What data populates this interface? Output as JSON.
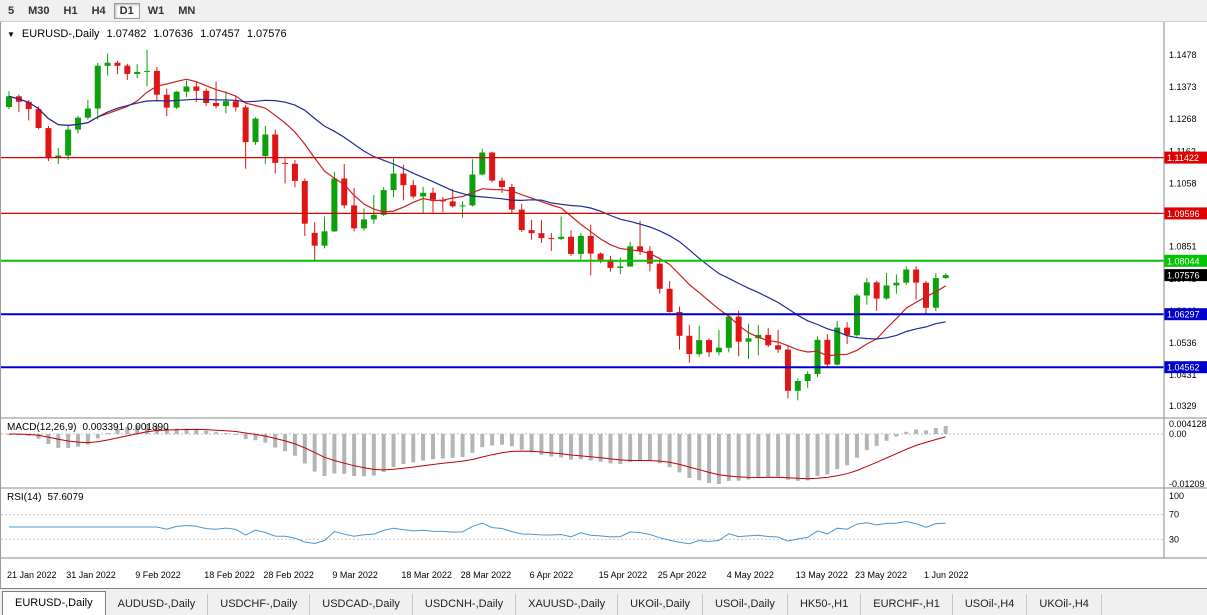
{
  "toolbar": {
    "timeframes": [
      "5",
      "M30",
      "H1",
      "H4",
      "D1",
      "W1",
      "MN"
    ],
    "active": "D1"
  },
  "chart": {
    "expand_icon": "▼",
    "symbol_label": "EURUSD-,Daily",
    "ohlc": {
      "open": "1.07482",
      "high": "1.07636",
      "low": "1.07457",
      "close": "1.07576"
    }
  },
  "indicators": {
    "macd": {
      "label": "MACD(12,26,9)",
      "values": "0.003391 0.001890",
      "axis": {
        "max": "0.004128",
        "zero": "0.00",
        "min": "-0.01209"
      }
    },
    "rsi": {
      "label": "RSI(14)",
      "value": "57.6079",
      "axis": [
        "100",
        "70",
        "30"
      ]
    }
  },
  "price_axis": {
    "labels": [
      "1.1478",
      "1.1373",
      "1.1268",
      "1.1162",
      "1.1058",
      "1.0953",
      "1.0851",
      "1.0745",
      "1.0640",
      "1.0536",
      "1.0431",
      "1.0329"
    ]
  },
  "levels": [
    {
      "price": 1.11422,
      "label": "1.11422",
      "color": "#dd0000",
      "width": 1.3
    },
    {
      "price": 1.09596,
      "label": "1.09596",
      "color": "#dd0000",
      "width": 1.3
    },
    {
      "price": 1.08044,
      "label": "1.08044",
      "color": "#00c400",
      "width": 2
    },
    {
      "price": 1.06297,
      "label": "1.06297",
      "color": "#0000cc",
      "width": 2
    },
    {
      "price": 1.04562,
      "label": "1.04562",
      "color": "#0000cc",
      "width": 2
    }
  ],
  "current_price": {
    "value": 1.07576,
    "label": "1.07576",
    "color": "#000000"
  },
  "time_axis": [
    {
      "index": 0,
      "label": "21 Jan 2022"
    },
    {
      "index": 6,
      "label": "31 Jan 2022"
    },
    {
      "index": 13,
      "label": "9 Feb 2022"
    },
    {
      "index": 20,
      "label": "18 Feb 2022"
    },
    {
      "index": 26,
      "label": "28 Feb 2022"
    },
    {
      "index": 33,
      "label": "9 Mar 2022"
    },
    {
      "index": 40,
      "label": "18 Mar 2022"
    },
    {
      "index": 46,
      "label": "28 Mar 2022"
    },
    {
      "index": 53,
      "label": "6 Apr 2022"
    },
    {
      "index": 60,
      "label": "15 Apr 2022"
    },
    {
      "index": 66,
      "label": "25 Apr 2022"
    },
    {
      "index": 73,
      "label": "4 May 2022"
    },
    {
      "index": 80,
      "label": "13 May 2022"
    },
    {
      "index": 86,
      "label": "23 May 2022"
    },
    {
      "index": 93,
      "label": "1 Jun 2022"
    }
  ],
  "tabs": {
    "active_index": 0,
    "items": [
      "EURUSD-,Daily",
      "AUDUSD-,Daily",
      "USDCHF-,Daily",
      "USDCAD-,Daily",
      "USDCNH-,Daily",
      "XAUUSD-,Daily",
      "UKOil-,Daily",
      "USOil-,Daily",
      "HK50-,H1",
      "EURCHF-,H1",
      "USOil-,H4",
      "UKOil-,H4"
    ]
  },
  "chart_data": {
    "type": "candlestick",
    "symbol": "EURUSD",
    "timeframe": "Daily",
    "price_range": {
      "top": 1.156,
      "bottom": 1.029
    },
    "colors": {
      "up": "#0da00d",
      "down": "#e01616"
    },
    "ma": [
      {
        "period": 10,
        "color": "#cc2020"
      },
      {
        "period": 22,
        "color": "#20299a"
      }
    ],
    "candles": [
      [
        1.1308,
        1.136,
        1.1301,
        1.1343
      ],
      [
        1.1343,
        1.1349,
        1.1291,
        1.1325
      ],
      [
        1.1325,
        1.1331,
        1.1264,
        1.1301
      ],
      [
        1.1301,
        1.131,
        1.1235,
        1.1239
      ],
      [
        1.1239,
        1.1246,
        1.1131,
        1.1143
      ],
      [
        1.1143,
        1.1174,
        1.1121,
        1.1149
      ],
      [
        1.1149,
        1.1248,
        1.1135,
        1.1234
      ],
      [
        1.1234,
        1.1279,
        1.1221,
        1.1273
      ],
      [
        1.1273,
        1.1331,
        1.1267,
        1.1303
      ],
      [
        1.1303,
        1.1452,
        1.1267,
        1.1443
      ],
      [
        1.1443,
        1.1483,
        1.1411,
        1.1453
      ],
      [
        1.1453,
        1.1459,
        1.1415,
        1.1443
      ],
      [
        1.1443,
        1.1449,
        1.1396,
        1.1416
      ],
      [
        1.1416,
        1.1448,
        1.1402,
        1.1423
      ],
      [
        1.1423,
        1.1495,
        1.1375,
        1.1426
      ],
      [
        1.1426,
        1.1439,
        1.133,
        1.1348
      ],
      [
        1.1348,
        1.1368,
        1.1278,
        1.1306
      ],
      [
        1.1306,
        1.136,
        1.1301,
        1.1358
      ],
      [
        1.1358,
        1.1395,
        1.1341,
        1.1375
      ],
      [
        1.1375,
        1.1391,
        1.1324,
        1.1361
      ],
      [
        1.1361,
        1.1369,
        1.1312,
        1.1321
      ],
      [
        1.1321,
        1.1391,
        1.1303,
        1.1311
      ],
      [
        1.1311,
        1.1359,
        1.1287,
        1.1327
      ],
      [
        1.1327,
        1.1342,
        1.1294,
        1.1307
      ],
      [
        1.1307,
        1.1315,
        1.1106,
        1.1193
      ],
      [
        1.1193,
        1.1274,
        1.1184,
        1.127
      ],
      [
        1.1147,
        1.1246,
        1.1122,
        1.1218
      ],
      [
        1.1218,
        1.1234,
        1.109,
        1.1125
      ],
      [
        1.1125,
        1.1139,
        1.1058,
        1.1122
      ],
      [
        1.1122,
        1.1134,
        1.1045,
        1.1066
      ],
      [
        1.1066,
        1.1074,
        1.0886,
        1.0926
      ],
      [
        1.0896,
        1.0931,
        1.0806,
        1.0854
      ],
      [
        1.0854,
        1.0949,
        1.0845,
        1.0901
      ],
      [
        1.0901,
        1.1095,
        1.0899,
        1.1074
      ],
      [
        1.1074,
        1.1121,
        1.0976,
        1.0986
      ],
      [
        1.0986,
        1.1043,
        1.0901,
        1.0911
      ],
      [
        1.0911,
        1.0976,
        1.0903,
        1.094
      ],
      [
        1.094,
        1.102,
        1.0925,
        1.0955
      ],
      [
        1.0955,
        1.1046,
        1.0951,
        1.1036
      ],
      [
        1.1036,
        1.1139,
        1.1012,
        1.109
      ],
      [
        1.109,
        1.1119,
        1.1003,
        1.1052
      ],
      [
        1.1052,
        1.1069,
        1.1009,
        1.1015
      ],
      [
        1.1015,
        1.1047,
        1.0961,
        1.1027
      ],
      [
        1.1027,
        1.1044,
        1.0963,
        1.1004
      ],
      [
        1.1004,
        1.1014,
        1.0964,
        1.0999
      ],
      [
        1.0999,
        1.1039,
        1.0979,
        1.0983
      ],
      [
        1.0983,
        1.0999,
        1.0945,
        1.0986
      ],
      [
        1.0986,
        1.1137,
        1.0982,
        1.1087
      ],
      [
        1.1087,
        1.1171,
        1.1084,
        1.1159
      ],
      [
        1.1159,
        1.1162,
        1.1061,
        1.1067
      ],
      [
        1.1067,
        1.1077,
        1.1027,
        1.1046
      ],
      [
        1.1046,
        1.1056,
        1.096,
        1.0972
      ],
      [
        1.0972,
        1.0991,
        1.0899,
        1.0905
      ],
      [
        1.0905,
        1.0939,
        1.0874,
        1.0895
      ],
      [
        1.0895,
        1.0938,
        1.0863,
        1.0879
      ],
      [
        1.0879,
        1.0896,
        1.0837,
        1.0876
      ],
      [
        1.0876,
        1.095,
        1.0872,
        1.0883
      ],
      [
        1.0883,
        1.0904,
        1.0821,
        1.0827
      ],
      [
        1.0827,
        1.0896,
        1.0809,
        1.0886
      ],
      [
        1.0886,
        1.0923,
        1.0757,
        1.0828
      ],
      [
        1.0828,
        1.0832,
        1.0797,
        1.0808
      ],
      [
        1.0808,
        1.0821,
        1.0769,
        1.0781
      ],
      [
        1.0781,
        1.0815,
        1.0761,
        1.0786
      ],
      [
        1.0786,
        1.0867,
        1.0785,
        1.0852
      ],
      [
        1.0852,
        1.0936,
        1.0824,
        1.0837
      ],
      [
        1.0837,
        1.0853,
        1.077,
        1.0795
      ],
      [
        1.0795,
        1.0804,
        1.0697,
        1.0713
      ],
      [
        1.0713,
        1.0738,
        1.0635,
        1.0637
      ],
      [
        1.0637,
        1.0655,
        1.0514,
        1.0559
      ],
      [
        1.0559,
        1.0594,
        1.0471,
        1.0499
      ],
      [
        1.0499,
        1.0592,
        1.0491,
        1.0545
      ],
      [
        1.0545,
        1.0551,
        1.049,
        1.0505
      ],
      [
        1.0505,
        1.0578,
        1.0495,
        1.052
      ],
      [
        1.052,
        1.0631,
        1.0505,
        1.0622
      ],
      [
        1.0622,
        1.0642,
        1.0492,
        1.054
      ],
      [
        1.054,
        1.0599,
        1.0483,
        1.0551
      ],
      [
        1.0551,
        1.0594,
        1.0495,
        1.0562
      ],
      [
        1.0562,
        1.0585,
        1.0522,
        1.0528
      ],
      [
        1.0528,
        1.0578,
        1.0503,
        1.0514
      ],
      [
        1.0514,
        1.0527,
        1.0354,
        1.0379
      ],
      [
        1.0379,
        1.042,
        1.0348,
        1.0411
      ],
      [
        1.0411,
        1.0443,
        1.0389,
        1.0434
      ],
      [
        1.0434,
        1.0557,
        1.0424,
        1.0546
      ],
      [
        1.0546,
        1.0564,
        1.0459,
        1.0465
      ],
      [
        1.0465,
        1.0607,
        1.0462,
        1.0586
      ],
      [
        1.0586,
        1.0604,
        1.0532,
        1.0561
      ],
      [
        1.0561,
        1.0697,
        1.0556,
        1.0691
      ],
      [
        1.0691,
        1.0748,
        1.0661,
        1.0734
      ],
      [
        1.0734,
        1.0739,
        1.0641,
        1.0681
      ],
      [
        1.0681,
        1.0765,
        1.0677,
        1.0724
      ],
      [
        1.0724,
        1.076,
        1.0697,
        1.0733
      ],
      [
        1.0733,
        1.0786,
        1.0726,
        1.0776
      ],
      [
        1.0776,
        1.0787,
        1.0678,
        1.0733
      ],
      [
        1.0733,
        1.0739,
        1.0627,
        1.0651
      ],
      [
        1.0651,
        1.0764,
        1.064,
        1.0748
      ],
      [
        1.07482,
        1.07636,
        1.07457,
        1.07576
      ]
    ]
  }
}
